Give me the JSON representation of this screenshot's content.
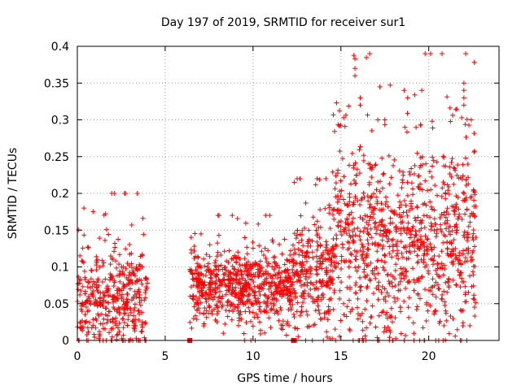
{
  "chart_data": {
    "type": "scatter",
    "title": "Day 197 of 2019, SRMTID for receiver sur1",
    "xlabel": "GPS time / hours",
    "ylabel": "SRMTID / TECUs",
    "xlim": [
      0,
      24
    ],
    "ylim": [
      0,
      0.4
    ],
    "x_ticks": [
      0,
      5,
      10,
      15,
      20
    ],
    "x_tick_labels": [
      "0",
      "5",
      "10",
      "15",
      "20"
    ],
    "y_ticks": [
      0,
      0.05,
      0.1,
      0.15,
      0.2,
      0.25,
      0.3,
      0.35,
      0.4
    ],
    "y_tick_labels": [
      "0",
      "0.05",
      "0.1",
      "0.15",
      "0.2",
      "0.25",
      "0.3",
      "0.35",
      "0.4"
    ],
    "grid": true,
    "marker": "+",
    "color": "#ff0000",
    "zero_markers_x": [
      6.4,
      12.3
    ],
    "segments": [
      {
        "x_start": 0.0,
        "x_end": 4.0,
        "mean": 0.055,
        "spread": 0.035,
        "max": 0.2,
        "count": 420
      },
      {
        "x_start": 6.4,
        "x_end": 12.3,
        "mean": 0.07,
        "spread": 0.025,
        "max": 0.17,
        "count": 700
      },
      {
        "x_start": 12.3,
        "x_end": 14.5,
        "mean": 0.085,
        "spread": 0.04,
        "max": 0.22,
        "count": 260
      },
      {
        "x_start": 14.5,
        "x_end": 22.7,
        "mean": 0.13,
        "spread": 0.065,
        "max": 0.39,
        "count": 1000
      }
    ],
    "notable_points": [
      {
        "x": 2.1,
        "y": 0.2
      },
      {
        "x": 15.8,
        "y": 0.383
      },
      {
        "x": 15.8,
        "y": 0.37
      },
      {
        "x": 15.8,
        "y": 0.36
      },
      {
        "x": 16.1,
        "y": 0.33
      },
      {
        "x": 16.1,
        "y": 0.32
      },
      {
        "x": 18.6,
        "y": 0.34
      },
      {
        "x": 18.8,
        "y": 0.33
      },
      {
        "x": 19.6,
        "y": 0.34
      },
      {
        "x": 22.1,
        "y": 0.39
      },
      {
        "x": 22.0,
        "y": 0.35
      },
      {
        "x": 22.0,
        "y": 0.34
      },
      {
        "x": 22.0,
        "y": 0.33
      },
      {
        "x": 22.0,
        "y": 0.32
      },
      {
        "x": 17.1,
        "y": 0.3
      },
      {
        "x": 17.5,
        "y": 0.3
      }
    ]
  }
}
